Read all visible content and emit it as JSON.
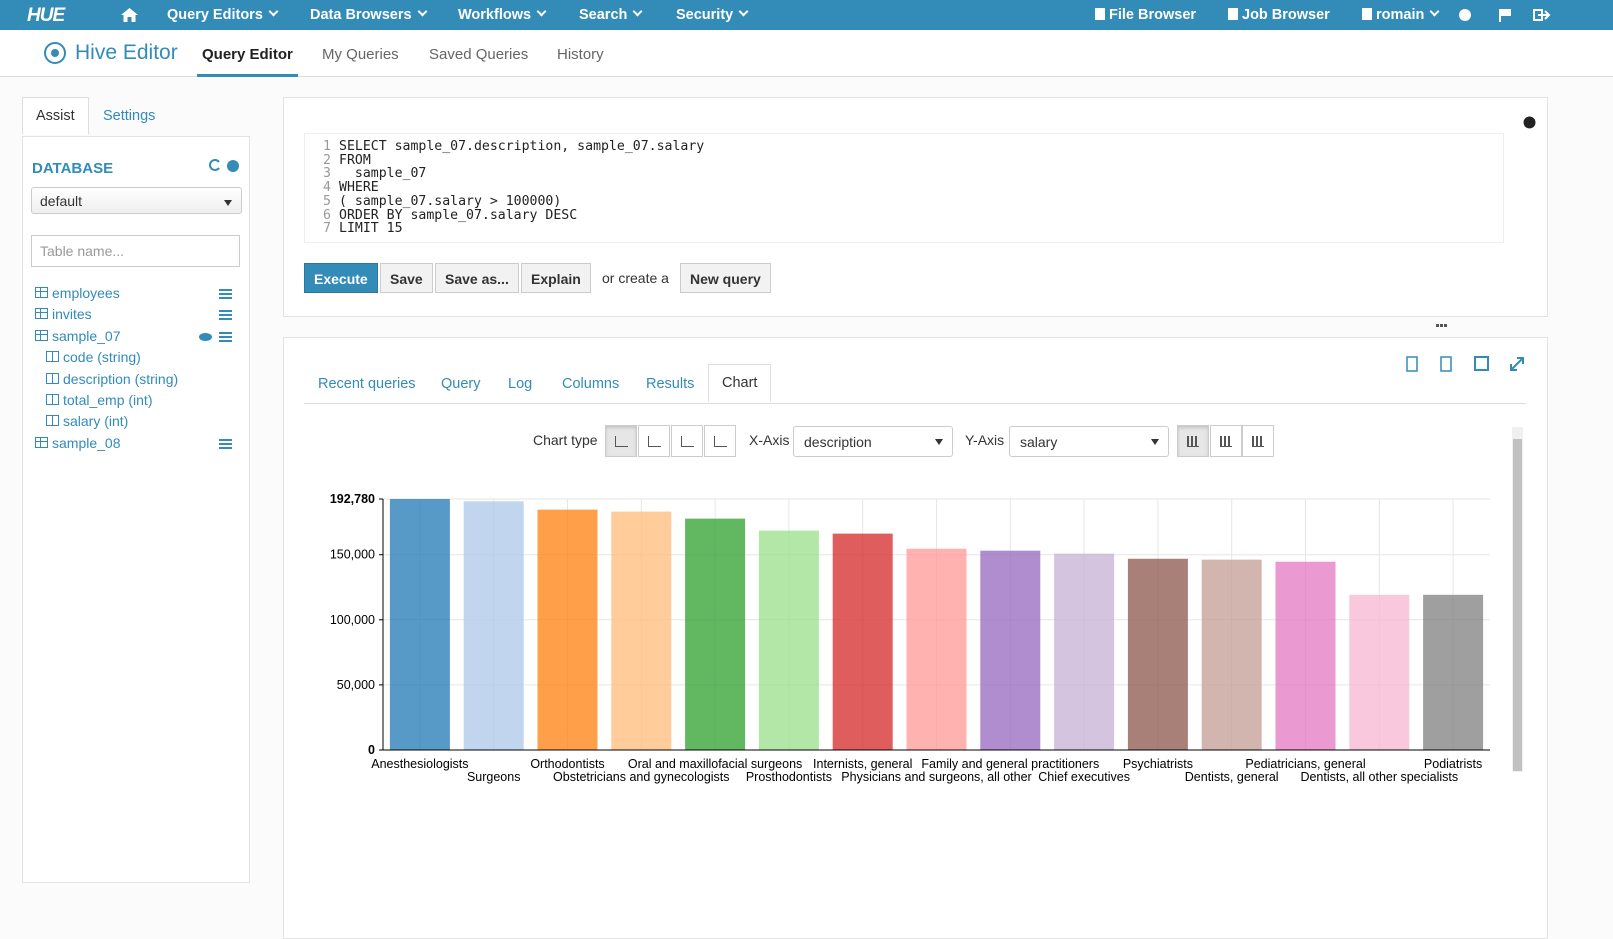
{
  "nav": {
    "logo": "HUE",
    "menus": [
      "Query Editors",
      "Data Browsers",
      "Workflows",
      "Search",
      "Security"
    ],
    "right": [
      "File Browser",
      "Job Browser",
      "romain"
    ]
  },
  "app": {
    "title": "Hive Editor",
    "tabs": [
      "Query Editor",
      "My Queries",
      "Saved Queries",
      "History"
    ],
    "active_tab": 0
  },
  "assist": {
    "tabs": [
      "Assist",
      "Settings"
    ],
    "active_tab": 0,
    "heading": "DATABASE",
    "database": "default",
    "filter_placeholder": "Table name...",
    "tables": [
      {
        "name": "employees"
      },
      {
        "name": "invites"
      },
      {
        "name": "sample_07",
        "columns": [
          "code (string)",
          "description (string)",
          "total_emp (int)",
          "salary (int)"
        ]
      },
      {
        "name": "sample_08"
      }
    ]
  },
  "editor": {
    "lines": [
      {
        "number": 1,
        "code": "SELECT sample_07.description, sample_07.salary"
      },
      {
        "number": 2,
        "code": "FROM"
      },
      {
        "number": 3,
        "code": "  sample_07"
      },
      {
        "number": 4,
        "code": "WHERE"
      },
      {
        "number": 5,
        "code": "( sample_07.salary > 100000)"
      },
      {
        "number": 6,
        "code": "ORDER BY sample_07.salary DESC"
      },
      {
        "number": 7,
        "code": "LIMIT 15"
      }
    ],
    "buttons": [
      "Execute",
      "Save",
      "Save as...",
      "Explain"
    ],
    "create_text": "or create a",
    "new_query": "New query"
  },
  "results": {
    "tabs": [
      "Recent queries",
      "Query",
      "Log",
      "Columns",
      "Results",
      "Chart"
    ],
    "active_tab": 5,
    "chart_type_label": "Chart type",
    "x_axis_label": "X-Axis",
    "x_axis_value": "description",
    "y_axis_label": "Y-Axis",
    "y_axis_value": "salary"
  },
  "chart_data": {
    "type": "bar",
    "categories": [
      "Anesthesiologists",
      "Surgeons",
      "Orthodontists",
      "Obstetricians and gynecologists",
      "Oral and maxillofacial surgeons",
      "Prosthodontists",
      "Internists, general",
      "Physicians and surgeons, all other",
      "Family and general practitioners",
      "Chief executives",
      "Psychiatrists",
      "Dentists, general",
      "Pediatricians, general",
      "Dentists, all other specialists",
      "Podiatrists"
    ],
    "values": [
      192780,
      191000,
      184600,
      183100,
      177700,
      168500,
      166200,
      154600,
      153100,
      150800,
      146900,
      146200,
      144600,
      119200,
      119200
    ],
    "colors": [
      "#1f77b4",
      "#aec7e8",
      "#ff7f0e",
      "#ffbb78",
      "#2ca02c",
      "#98df8a",
      "#d62728",
      "#ff9896",
      "#9467bd",
      "#c5b0d5",
      "#8c564b",
      "#c49c94",
      "#e377c2",
      "#f7b6d2",
      "#7f7f7f"
    ],
    "ylim": [
      0,
      192780
    ],
    "yticks": [
      0,
      {
        "value": 50000,
        "label": "50,000"
      },
      {
        "value": 100000,
        "label": "100,000"
      },
      {
        "value": 150000,
        "label": "150,000"
      },
      {
        "value": 192780,
        "label": "192,780"
      }
    ],
    "grid": true
  }
}
